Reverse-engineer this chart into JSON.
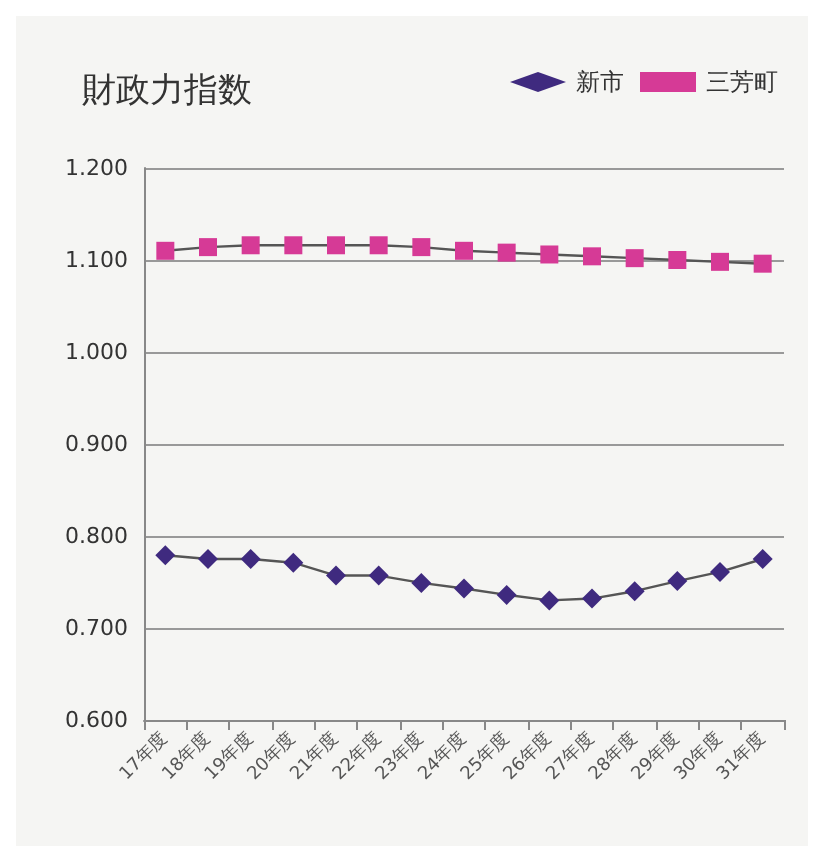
{
  "chart_data": {
    "type": "line",
    "title": "財政力指数",
    "categories": [
      "17年度",
      "18年度",
      "19年度",
      "20年度",
      "21年度",
      "22年度",
      "23年度",
      "24年度",
      "25年度",
      "26年度",
      "27年度",
      "28年度",
      "29年度",
      "30年度",
      "31年度"
    ],
    "series": [
      {
        "name": "新市",
        "color": "#3f2a7f",
        "marker": "diamond",
        "values": [
          0.779,
          0.775,
          0.775,
          0.771,
          0.757,
          0.757,
          0.749,
          0.743,
          0.736,
          0.73,
          0.732,
          0.74,
          0.751,
          0.761,
          0.775
        ]
      },
      {
        "name": "三芳町",
        "color": "#d63a96",
        "marker": "square",
        "values": [
          1.11,
          1.114,
          1.116,
          1.116,
          1.116,
          1.116,
          1.114,
          1.11,
          1.108,
          1.106,
          1.104,
          1.102,
          1.1,
          1.098,
          1.096
        ]
      }
    ],
    "ylim": [
      0.6,
      1.2
    ],
    "yticks": [
      {
        "value": 0.6,
        "label": "0.600"
      },
      {
        "value": 0.7,
        "label": "0.700"
      },
      {
        "value": 0.8,
        "label": "0.800"
      },
      {
        "value": 0.9,
        "label": "0.900"
      },
      {
        "value": 1.0,
        "label": "1.000"
      },
      {
        "value": 1.1,
        "label": "1.100"
      },
      {
        "value": 1.2,
        "label": "1.200"
      }
    ],
    "grid": "y",
    "legend": "top right",
    "line_style": "solid"
  }
}
